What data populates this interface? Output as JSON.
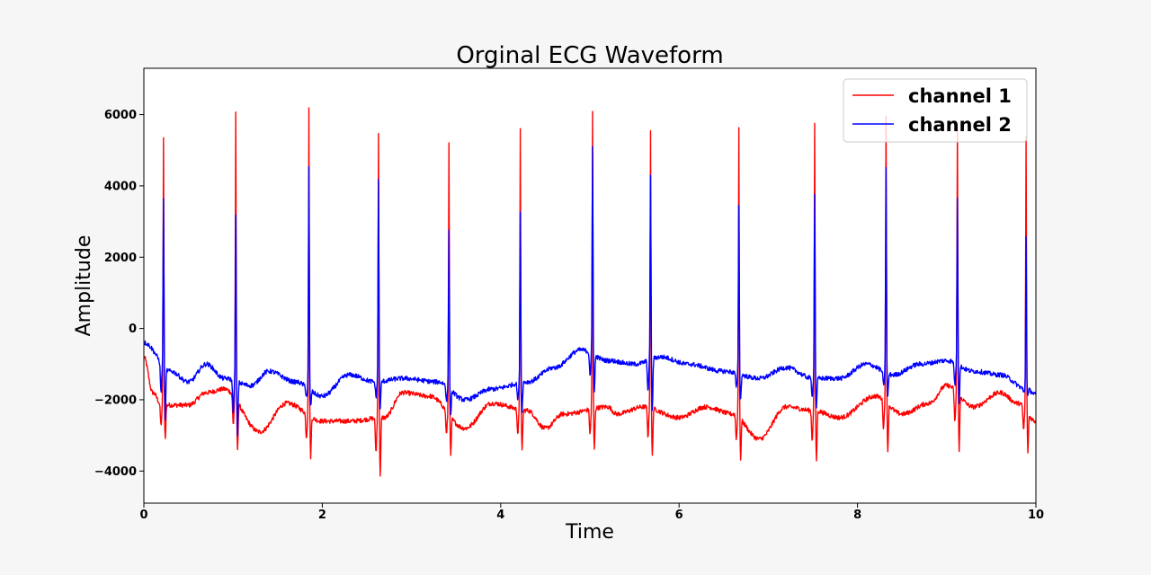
{
  "chart_data": {
    "type": "line",
    "title": "Orginal ECG Waveform",
    "xlabel": "Time",
    "ylabel": "Amplitude",
    "xlim": [
      0,
      10
    ],
    "ylim": [
      -4900,
      7300
    ],
    "xticks": [
      0,
      2,
      4,
      6,
      8,
      10
    ],
    "yticks": [
      -4000,
      -2000,
      0,
      2000,
      4000,
      6000
    ],
    "grid": false,
    "legend_position": "top-right",
    "beat_times": [
      0.22,
      1.03,
      1.85,
      2.63,
      3.42,
      4.22,
      5.03,
      5.68,
      6.67,
      7.52,
      8.32,
      9.12,
      9.89
    ],
    "series": [
      {
        "name": "channel 1",
        "color": "#ff0000",
        "r_peaks": [
          5350,
          6020,
          6150,
          5500,
          5250,
          5650,
          6050,
          5600,
          5650,
          5700,
          5900,
          5700,
          5350
        ],
        "s_troughs": [
          -3100,
          -3450,
          -3600,
          -4100,
          -3600,
          -3450,
          -3400,
          -3600,
          -3650,
          -3700,
          -3450,
          -3400,
          -3450
        ],
        "baseline": [
          [
            0,
            -800
          ],
          [
            0.1,
            -1800
          ],
          [
            0.2,
            -2150
          ],
          [
            0.5,
            -2150
          ],
          [
            0.7,
            -1800
          ],
          [
            0.9,
            -1700
          ],
          [
            1.3,
            -2900
          ],
          [
            1.6,
            -2100
          ],
          [
            2.0,
            -2600
          ],
          [
            2.3,
            -2600
          ],
          [
            2.7,
            -2500
          ],
          [
            2.9,
            -1800
          ],
          [
            3.2,
            -1900
          ],
          [
            3.6,
            -2800
          ],
          [
            3.9,
            -2100
          ],
          [
            4.3,
            -2300
          ],
          [
            4.5,
            -2800
          ],
          [
            4.7,
            -2400
          ],
          [
            5.2,
            -2200
          ],
          [
            5.3,
            -2400
          ],
          [
            5.6,
            -2200
          ],
          [
            6.0,
            -2500
          ],
          [
            6.3,
            -2200
          ],
          [
            6.6,
            -2400
          ],
          [
            6.9,
            -3100
          ],
          [
            7.2,
            -2200
          ],
          [
            7.5,
            -2300
          ],
          [
            7.8,
            -2500
          ],
          [
            8.2,
            -1900
          ],
          [
            8.5,
            -2400
          ],
          [
            8.8,
            -2100
          ],
          [
            9.0,
            -1600
          ],
          [
            9.3,
            -2200
          ],
          [
            9.6,
            -1800
          ],
          [
            9.8,
            -2100
          ],
          [
            10.0,
            -2600
          ]
        ]
      },
      {
        "name": "channel 2",
        "color": "#0000ff",
        "r_peaks": [
          3700,
          3150,
          4500,
          4200,
          2800,
          3300,
          5100,
          4250,
          3500,
          3800,
          4500,
          3700,
          2550
        ],
        "s_troughs": [
          -2500,
          -3000,
          -2200,
          -2200,
          -2400,
          -2300,
          -1800,
          -2300,
          -2000,
          -2200,
          -1900,
          -2100,
          -1900
        ],
        "baseline": [
          [
            0,
            -400
          ],
          [
            0.3,
            -1200
          ],
          [
            0.5,
            -1500
          ],
          [
            0.7,
            -1000
          ],
          [
            0.9,
            -1400
          ],
          [
            1.2,
            -1600
          ],
          [
            1.4,
            -1200
          ],
          [
            1.7,
            -1500
          ],
          [
            2.0,
            -1900
          ],
          [
            2.3,
            -1300
          ],
          [
            2.6,
            -1500
          ],
          [
            2.9,
            -1400
          ],
          [
            3.3,
            -1500
          ],
          [
            3.6,
            -2000
          ],
          [
            3.9,
            -1700
          ],
          [
            4.3,
            -1500
          ],
          [
            4.6,
            -1100
          ],
          [
            4.9,
            -600
          ],
          [
            5.2,
            -900
          ],
          [
            5.5,
            -1000
          ],
          [
            5.8,
            -800
          ],
          [
            6.1,
            -1000
          ],
          [
            6.5,
            -1200
          ],
          [
            6.9,
            -1400
          ],
          [
            7.2,
            -1100
          ],
          [
            7.5,
            -1400
          ],
          [
            7.8,
            -1400
          ],
          [
            8.1,
            -1000
          ],
          [
            8.4,
            -1300
          ],
          [
            8.7,
            -1000
          ],
          [
            9.0,
            -900
          ],
          [
            9.3,
            -1200
          ],
          [
            9.6,
            -1300
          ],
          [
            9.9,
            -1700
          ],
          [
            10.0,
            -1850
          ]
        ]
      }
    ]
  }
}
